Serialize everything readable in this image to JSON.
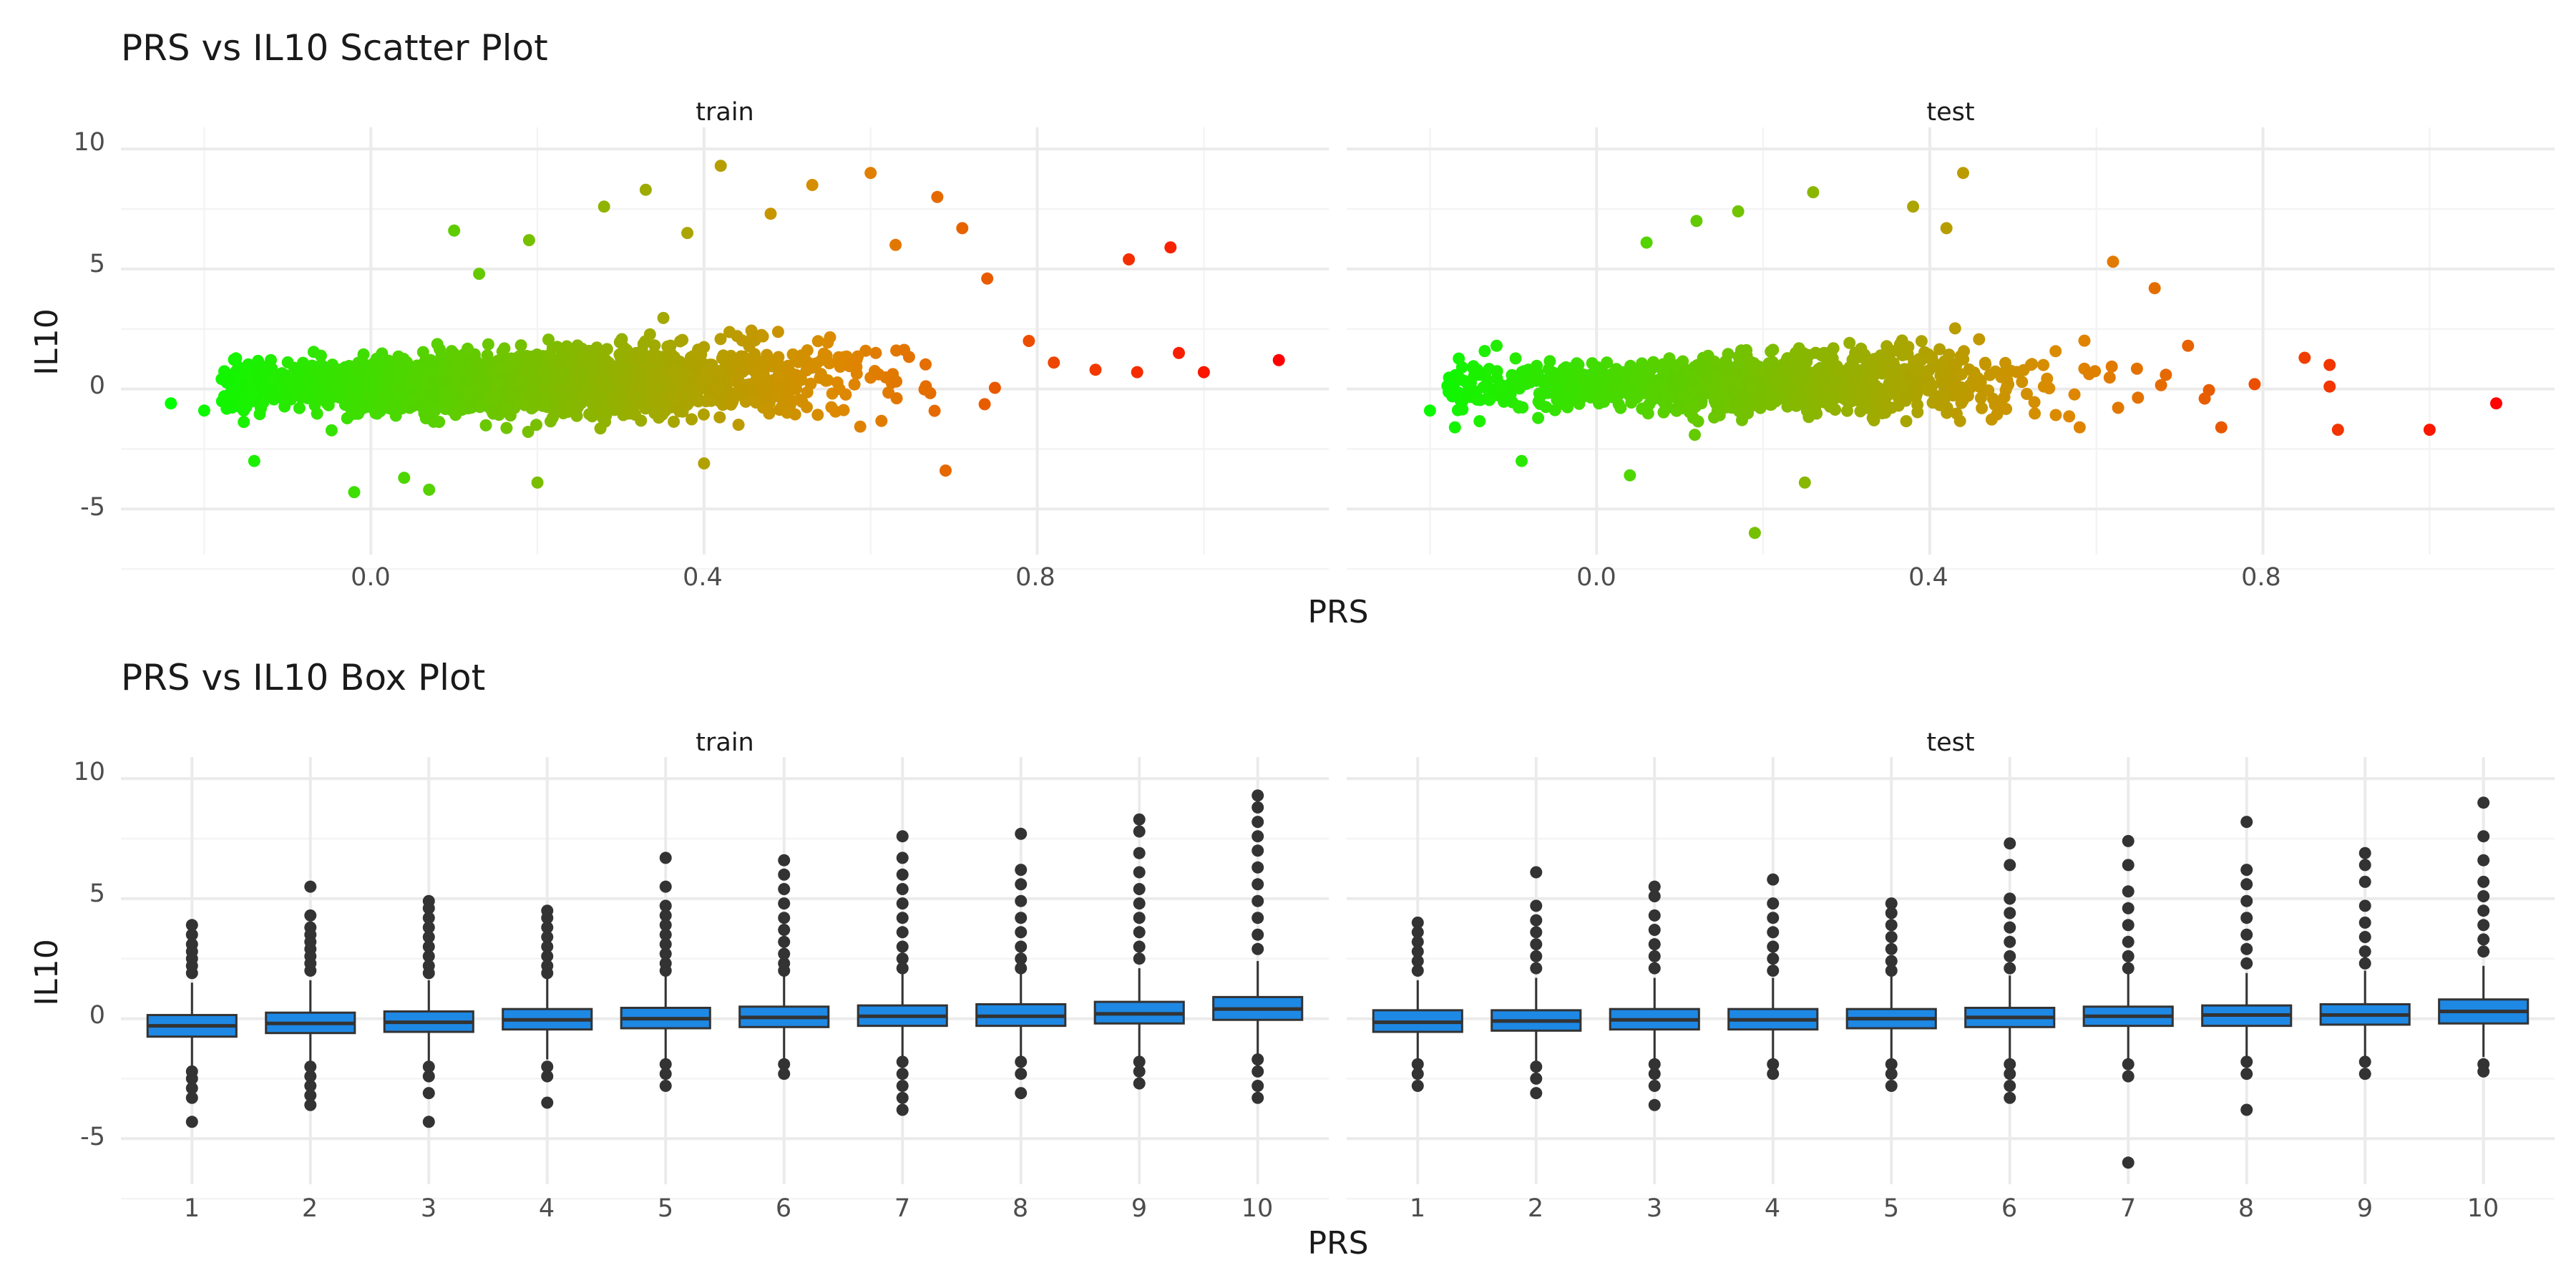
{
  "chart_data": [
    {
      "type": "scatter",
      "title": "PRS vs IL10 Scatter Plot",
      "xlabel": "PRS",
      "ylabel": "IL10",
      "facets": [
        "train",
        "test"
      ],
      "xlim": [
        -0.3,
        1.15
      ],
      "ylim": [
        -6.9,
        10.9
      ],
      "x_ticks": [
        "0.0",
        "0.4",
        "0.8"
      ],
      "y_ticks": [
        "-5",
        "0",
        "5",
        "10"
      ],
      "color_scale": {
        "low": "#00ff00",
        "mid": "#dd8a00",
        "high": "#ff0000",
        "basis": "PRS"
      },
      "grid": true,
      "legend": "none",
      "series": [
        {
          "facet": "train",
          "points": [
            {
              "x": -0.24,
              "y": -0.6
            },
            {
              "x": -0.2,
              "y": -0.9
            },
            {
              "x": -0.17,
              "y": 0.3
            },
            {
              "x": -0.12,
              "y": 1.2
            },
            {
              "x": -0.14,
              "y": -3.0
            },
            {
              "x": -0.02,
              "y": -4.3
            },
            {
              "x": 0.04,
              "y": -3.7
            },
            {
              "x": 0.07,
              "y": -4.2
            },
            {
              "x": 0.1,
              "y": 6.6
            },
            {
              "x": 0.13,
              "y": 4.8
            },
            {
              "x": 0.19,
              "y": 6.2
            },
            {
              "x": 0.2,
              "y": -3.9
            },
            {
              "x": 0.28,
              "y": 7.6
            },
            {
              "x": 0.33,
              "y": 8.3
            },
            {
              "x": 0.38,
              "y": 6.5
            },
            {
              "x": 0.4,
              "y": -3.1
            },
            {
              "x": 0.42,
              "y": 9.3
            },
            {
              "x": 0.48,
              "y": 7.3
            },
            {
              "x": 0.53,
              "y": 8.5
            },
            {
              "x": 0.6,
              "y": 9.0
            },
            {
              "x": 0.63,
              "y": 6.0
            },
            {
              "x": 0.68,
              "y": 8.0
            },
            {
              "x": 0.69,
              "y": -3.4
            },
            {
              "x": 0.71,
              "y": 6.7
            },
            {
              "x": 0.74,
              "y": 4.6
            },
            {
              "x": 0.79,
              "y": 2.0
            },
            {
              "x": 0.82,
              "y": 1.1
            },
            {
              "x": 0.87,
              "y": 0.8
            },
            {
              "x": 0.91,
              "y": 5.4
            },
            {
              "x": 0.92,
              "y": 0.7
            },
            {
              "x": 0.97,
              "y": 1.5
            },
            {
              "x": 0.96,
              "y": 5.9
            },
            {
              "x": 1.0,
              "y": 0.7
            },
            {
              "x": 1.09,
              "y": 1.2
            }
          ]
        },
        {
          "facet": "test",
          "points": [
            {
              "x": -0.2,
              "y": -0.9
            },
            {
              "x": -0.17,
              "y": -1.6
            },
            {
              "x": -0.12,
              "y": 1.8
            },
            {
              "x": -0.09,
              "y": -3.0
            },
            {
              "x": 0.04,
              "y": -3.6
            },
            {
              "x": 0.06,
              "y": 6.1
            },
            {
              "x": 0.12,
              "y": 7.0
            },
            {
              "x": 0.17,
              "y": 7.4
            },
            {
              "x": 0.19,
              "y": -6.0
            },
            {
              "x": 0.25,
              "y": -3.9
            },
            {
              "x": 0.26,
              "y": 8.2
            },
            {
              "x": 0.38,
              "y": 7.6
            },
            {
              "x": 0.42,
              "y": 6.7
            },
            {
              "x": 0.44,
              "y": 9.0
            },
            {
              "x": 0.58,
              "y": -1.6
            },
            {
              "x": 0.62,
              "y": 5.3
            },
            {
              "x": 0.67,
              "y": 4.2
            },
            {
              "x": 0.71,
              "y": 1.8
            },
            {
              "x": 0.73,
              "y": -0.4
            },
            {
              "x": 0.75,
              "y": -1.6
            },
            {
              "x": 0.79,
              "y": 0.2
            },
            {
              "x": 0.85,
              "y": 1.3
            },
            {
              "x": 0.88,
              "y": 0.1
            },
            {
              "x": 0.88,
              "y": 1.0
            },
            {
              "x": 0.89,
              "y": -1.7
            },
            {
              "x": 1.0,
              "y": -1.7
            },
            {
              "x": 1.08,
              "y": -0.6
            }
          ]
        }
      ]
    },
    {
      "type": "box",
      "title": "PRS vs IL10 Box Plot",
      "xlabel": "PRS",
      "ylabel": "IL10",
      "facets": [
        "train",
        "test"
      ],
      "categories": [
        "1",
        "2",
        "3",
        "4",
        "5",
        "6",
        "7",
        "8",
        "9",
        "10"
      ],
      "ylim": [
        -6.9,
        10.9
      ],
      "y_ticks": [
        "-5",
        "0",
        "5",
        "10"
      ],
      "fill_color": "#1e88e5",
      "grid": true,
      "legend": "none",
      "series": [
        {
          "facet": "train",
          "boxes": [
            {
              "q1": -0.75,
              "median": -0.3,
              "q3": 0.15,
              "whisker_low": -2.1,
              "whisker_high": 1.5,
              "outliers": [
                3.9,
                3.5,
                3.1,
                2.8,
                2.5,
                2.2,
                1.9,
                -2.2,
                -2.5,
                -2.9,
                -3.3,
                -4.3
              ]
            },
            {
              "q1": -0.6,
              "median": -0.2,
              "q3": 0.25,
              "whisker_low": -1.9,
              "whisker_high": 1.6,
              "outliers": [
                5.5,
                4.3,
                3.8,
                3.5,
                3.2,
                2.9,
                2.6,
                2.3,
                2.0,
                -2.0,
                -2.4,
                -2.8,
                -3.2,
                -3.6
              ]
            },
            {
              "q1": -0.55,
              "median": -0.15,
              "q3": 0.3,
              "whisker_low": -1.8,
              "whisker_high": 1.6,
              "outliers": [
                4.9,
                4.6,
                4.2,
                3.8,
                3.4,
                3.0,
                2.6,
                2.2,
                1.9,
                -2.0,
                -2.4,
                -3.1,
                -4.3
              ]
            },
            {
              "q1": -0.45,
              "median": -0.05,
              "q3": 0.4,
              "whisker_low": -1.7,
              "whisker_high": 1.7,
              "outliers": [
                4.5,
                4.2,
                3.8,
                3.4,
                3.0,
                2.6,
                2.2,
                1.9,
                -2.0,
                -2.4,
                -3.5
              ]
            },
            {
              "q1": -0.4,
              "median": 0.0,
              "q3": 0.45,
              "whisker_low": -1.7,
              "whisker_high": 1.8,
              "outliers": [
                6.7,
                5.5,
                4.7,
                4.3,
                3.9,
                3.5,
                3.1,
                2.7,
                2.3,
                2.0,
                -1.9,
                -2.3,
                -2.8
              ]
            },
            {
              "q1": -0.35,
              "median": 0.05,
              "q3": 0.5,
              "whisker_low": -1.7,
              "whisker_high": 1.8,
              "outliers": [
                6.6,
                6.0,
                5.4,
                4.8,
                4.2,
                3.7,
                3.2,
                2.7,
                2.3,
                2.0,
                -1.9,
                -2.3
              ]
            },
            {
              "q1": -0.3,
              "median": 0.1,
              "q3": 0.55,
              "whisker_low": -1.7,
              "whisker_high": 1.9,
              "outliers": [
                7.6,
                6.7,
                6.0,
                5.4,
                4.8,
                4.2,
                3.6,
                3.0,
                2.5,
                2.1,
                -1.8,
                -2.3,
                -2.8,
                -3.3,
                -3.8
              ]
            },
            {
              "q1": -0.3,
              "median": 0.1,
              "q3": 0.6,
              "whisker_low": -1.6,
              "whisker_high": 1.9,
              "outliers": [
                7.7,
                6.2,
                5.6,
                4.9,
                4.2,
                3.6,
                3.0,
                2.5,
                2.1,
                -1.8,
                -2.3,
                -3.1
              ]
            },
            {
              "q1": -0.2,
              "median": 0.2,
              "q3": 0.7,
              "whisker_low": -1.6,
              "whisker_high": 2.1,
              "outliers": [
                8.3,
                7.8,
                6.9,
                6.1,
                5.4,
                4.8,
                4.2,
                3.6,
                3.0,
                2.5,
                -1.8,
                -2.2,
                -2.7
              ]
            },
            {
              "q1": -0.05,
              "median": 0.4,
              "q3": 0.9,
              "whisker_low": -1.5,
              "whisker_high": 2.4,
              "outliers": [
                9.3,
                8.8,
                8.2,
                7.6,
                7.0,
                6.3,
                5.6,
                4.9,
                4.2,
                3.5,
                2.9,
                -1.7,
                -2.2,
                -2.8,
                -3.3
              ]
            }
          ]
        },
        {
          "facet": "test",
          "boxes": [
            {
              "q1": -0.55,
              "median": -0.15,
              "q3": 0.35,
              "whisker_low": -1.8,
              "whisker_high": 1.6,
              "outliers": [
                4.0,
                3.6,
                3.2,
                2.8,
                2.4,
                2.0,
                -1.9,
                -2.3,
                -2.8
              ]
            },
            {
              "q1": -0.5,
              "median": -0.1,
              "q3": 0.35,
              "whisker_low": -1.8,
              "whisker_high": 1.7,
              "outliers": [
                6.1,
                4.7,
                4.1,
                3.6,
                3.1,
                2.6,
                2.1,
                -2.0,
                -2.5,
                -3.1
              ]
            },
            {
              "q1": -0.45,
              "median": -0.05,
              "q3": 0.4,
              "whisker_low": -1.7,
              "whisker_high": 1.7,
              "outliers": [
                5.5,
                5.1,
                4.3,
                3.7,
                3.1,
                2.6,
                2.1,
                -1.9,
                -2.3,
                -2.8,
                -3.6
              ]
            },
            {
              "q1": -0.45,
              "median": -0.05,
              "q3": 0.4,
              "whisker_low": -1.7,
              "whisker_high": 1.7,
              "outliers": [
                5.8,
                4.8,
                4.2,
                3.6,
                3.0,
                2.5,
                2.0,
                -1.9,
                -2.3
              ]
            },
            {
              "q1": -0.4,
              "median": 0.0,
              "q3": 0.4,
              "whisker_low": -1.7,
              "whisker_high": 1.8,
              "outliers": [
                4.8,
                4.4,
                3.9,
                3.4,
                2.9,
                2.4,
                2.0,
                -1.9,
                -2.3,
                -2.8
              ]
            },
            {
              "q1": -0.35,
              "median": 0.05,
              "q3": 0.45,
              "whisker_low": -1.7,
              "whisker_high": 1.8,
              "outliers": [
                7.3,
                6.4,
                5.0,
                4.4,
                3.8,
                3.2,
                2.6,
                2.1,
                -1.9,
                -2.3,
                -2.8,
                -3.3
              ]
            },
            {
              "q1": -0.3,
              "median": 0.1,
              "q3": 0.5,
              "whisker_low": -1.7,
              "whisker_high": 1.9,
              "outliers": [
                7.4,
                6.4,
                5.3,
                4.6,
                3.9,
                3.2,
                2.6,
                2.1,
                -1.9,
                -2.4,
                -6.0
              ]
            },
            {
              "q1": -0.3,
              "median": 0.15,
              "q3": 0.55,
              "whisker_low": -1.6,
              "whisker_high": 1.9,
              "outliers": [
                8.2,
                6.2,
                5.6,
                4.9,
                4.2,
                3.5,
                2.9,
                2.3,
                -1.8,
                -2.3,
                -3.8
              ]
            },
            {
              "q1": -0.25,
              "median": 0.15,
              "q3": 0.6,
              "whisker_low": -1.6,
              "whisker_high": 2.0,
              "outliers": [
                6.9,
                6.4,
                5.7,
                4.7,
                4.0,
                3.4,
                2.8,
                2.3,
                -1.8,
                -2.3
              ]
            },
            {
              "q1": -0.2,
              "median": 0.3,
              "q3": 0.8,
              "whisker_low": -1.6,
              "whisker_high": 2.2,
              "outliers": [
                9.0,
                7.6,
                6.6,
                5.7,
                5.1,
                4.5,
                3.9,
                3.3,
                2.8,
                -1.9,
                -2.2
              ]
            }
          ]
        }
      ]
    }
  ]
}
